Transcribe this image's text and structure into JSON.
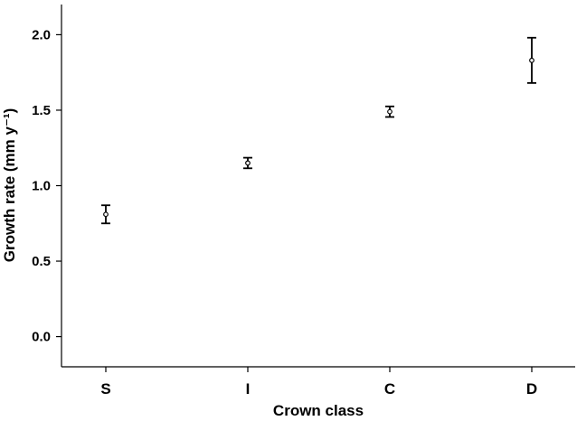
{
  "chart_data": {
    "type": "errorbar",
    "xlabel": "Crown class",
    "ylabel": "Growth rate (mm y⁻¹)",
    "categories": [
      "S",
      "I",
      "C",
      "D"
    ],
    "values": [
      0.81,
      1.15,
      1.49,
      1.83
    ],
    "errors": [
      0.06,
      0.035,
      0.035,
      0.15
    ],
    "color": "#000000",
    "ylim": [
      -0.2,
      2.2
    ],
    "yticks": [
      {
        "value": 0,
        "label": "0.0"
      },
      0.5,
      {
        "value": 1,
        "label": "1.0"
      },
      1.5,
      {
        "value": 2,
        "label": "2.0"
      }
    ],
    "grid": false
  }
}
